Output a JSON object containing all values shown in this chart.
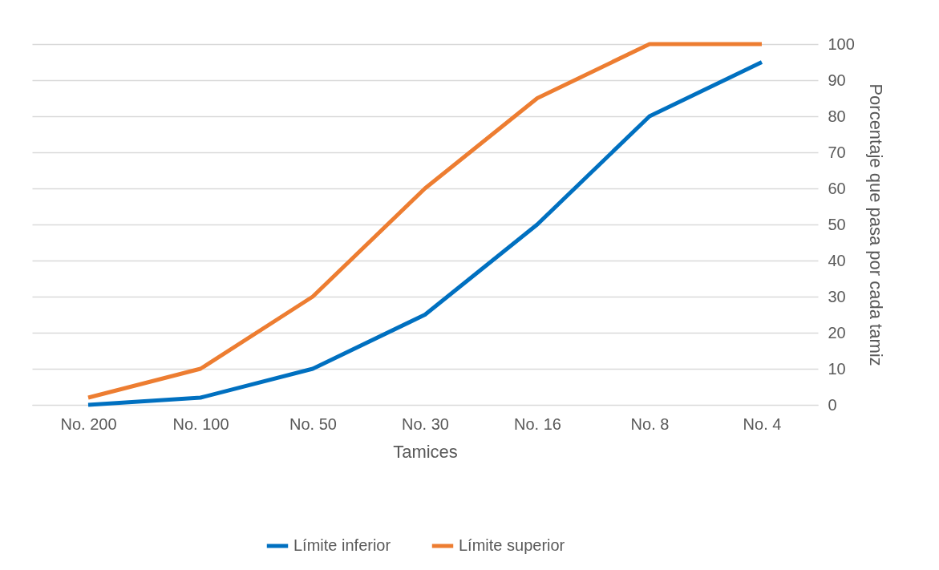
{
  "chart_data": {
    "type": "line",
    "xlabel": "Tamices",
    "ylabel": "Porcentaje que pasa por cada tamiz",
    "categories": [
      "No. 200",
      "No. 100",
      "No. 50",
      "No. 30",
      "No. 16",
      "No. 8",
      "No. 4"
    ],
    "series": [
      {
        "name": "Límite inferior",
        "color": "#0070c0",
        "values": [
          0,
          2,
          10,
          25,
          50,
          80,
          95
        ]
      },
      {
        "name": "Límite superior",
        "color": "#ed7d31",
        "values": [
          2,
          10,
          30,
          60,
          85,
          100,
          100
        ]
      }
    ],
    "ylim": [
      0,
      100
    ],
    "yticks": [
      0,
      10,
      20,
      30,
      40,
      50,
      60,
      70,
      80,
      90,
      100
    ],
    "grid": "y",
    "legend": "bottom",
    "marker": "none",
    "line_style": "solid"
  }
}
